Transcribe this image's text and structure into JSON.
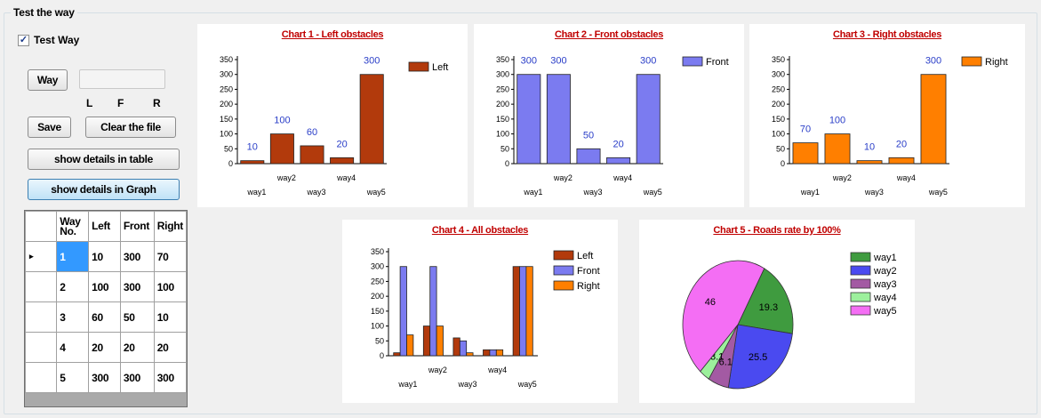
{
  "groupbox": {
    "title": "Test the way"
  },
  "checkbox": {
    "label": "Test Way",
    "checked": "✓"
  },
  "buttons": {
    "way": "Way",
    "save": "Save",
    "clear": "Clear the file",
    "show_table": "show details in table",
    "show_graph": "show details in Graph"
  },
  "lfr_labels": {
    "l": "L",
    "f": "F",
    "r": "R"
  },
  "table": {
    "headers": [
      "Way No.",
      "Left",
      "Front",
      "Right"
    ],
    "header_way_line1": "Way",
    "header_way_line2": "No.",
    "row_indicator": "▸",
    "rows": [
      [
        "1",
        "10",
        "300",
        "70"
      ],
      [
        "2",
        "100",
        "300",
        "100"
      ],
      [
        "3",
        "60",
        "50",
        "10"
      ],
      [
        "4",
        "20",
        "20",
        "20"
      ],
      [
        "5",
        "300",
        "300",
        "300"
      ]
    ]
  },
  "colors": {
    "left": "#b23a0c",
    "front": "#7b7bf0",
    "right": "#ff7f00",
    "title": "#c00000",
    "value_label": "#2a3ec8"
  },
  "chart_data": [
    {
      "type": "bar",
      "title": "Chart 1 - Left obstacles",
      "categories": [
        "way1",
        "way2",
        "way3",
        "way4",
        "way5"
      ],
      "series": [
        {
          "name": "Left",
          "values": [
            10,
            100,
            60,
            20,
            300
          ],
          "color": "#b23a0c"
        }
      ],
      "yticks": [
        "0",
        "50",
        "100",
        "150",
        "200",
        "250",
        "300",
        "350"
      ],
      "ylim": [
        0,
        350
      ],
      "data_labels": true,
      "legend": "top-right"
    },
    {
      "type": "bar",
      "title": "Chart 2 - Front obstacles",
      "categories": [
        "way1",
        "way2",
        "way3",
        "way4",
        "way5"
      ],
      "series": [
        {
          "name": "Front",
          "values": [
            300,
            300,
            50,
            20,
            300
          ],
          "color": "#7b7bf0"
        }
      ],
      "yticks": [
        "0",
        "50",
        "100",
        "150",
        "200",
        "250",
        "300",
        "350"
      ],
      "ylim": [
        0,
        350
      ],
      "data_labels": true,
      "legend": "top-right"
    },
    {
      "type": "bar",
      "title": "Chart 3 - Right obstacles",
      "categories": [
        "way1",
        "way2",
        "way3",
        "way4",
        "way5"
      ],
      "series": [
        {
          "name": "Right",
          "values": [
            70,
            100,
            10,
            20,
            300
          ],
          "color": "#ff7f00"
        }
      ],
      "yticks": [
        "0",
        "50",
        "100",
        "150",
        "200",
        "250",
        "300",
        "350"
      ],
      "ylim": [
        0,
        350
      ],
      "data_labels": true,
      "legend": "top-right"
    },
    {
      "type": "bar",
      "title": "Chart 4 - All obstacles",
      "categories": [
        "way1",
        "way2",
        "way3",
        "way4",
        "way5"
      ],
      "series": [
        {
          "name": "Left",
          "values": [
            10,
            100,
            60,
            20,
            300
          ],
          "color": "#b23a0c"
        },
        {
          "name": "Front",
          "values": [
            300,
            300,
            50,
            20,
            300
          ],
          "color": "#7b7bf0"
        },
        {
          "name": "Right",
          "values": [
            70,
            100,
            10,
            20,
            300
          ],
          "color": "#ff7f00"
        }
      ],
      "yticks": [
        "0",
        "50",
        "100",
        "150",
        "200",
        "250",
        "300",
        "350"
      ],
      "ylim": [
        0,
        350
      ],
      "data_labels": false,
      "legend": "top-right"
    },
    {
      "type": "pie",
      "title": "Chart 5 - Roads rate by 100%",
      "categories": [
        "way1",
        "way2",
        "way3",
        "way4",
        "way5"
      ],
      "values": [
        19.3,
        25.5,
        6.1,
        3.1,
        46
      ],
      "slice_labels": [
        "19.3",
        "25.5",
        "6.1",
        "3.1",
        "46"
      ],
      "colors": [
        "#3f9b3f",
        "#4a4af0",
        "#a35aa3",
        "#9cf09c",
        "#f46ef4"
      ],
      "legend": "top-right"
    }
  ]
}
